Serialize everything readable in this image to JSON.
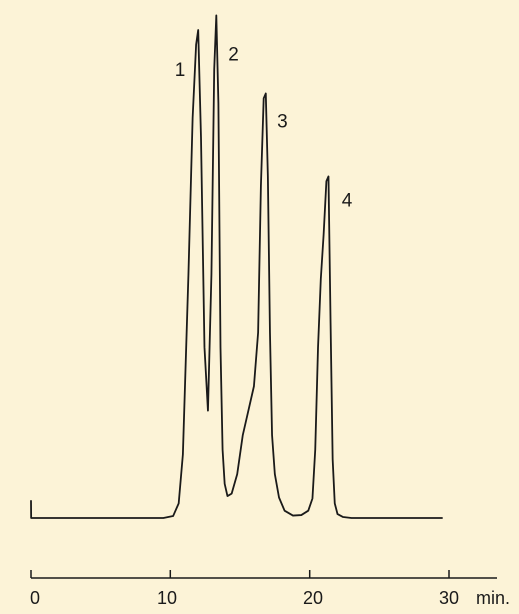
{
  "chart_data": {
    "type": "line",
    "title": "",
    "xlabel": "",
    "ylabel": "",
    "x_unit_label": "min.",
    "xlim": [
      0,
      30
    ],
    "ylim": [
      0,
      100
    ],
    "grid": false,
    "legend": "none",
    "x_ticks": [
      0,
      10,
      20,
      30
    ],
    "series": [
      {
        "x": [
          0,
          0.01,
          9.5,
          10.2,
          10.6,
          10.9,
          11.3,
          11.6,
          11.85,
          12.0,
          12.2,
          12.45,
          12.7,
          12.95,
          13.15,
          13.3,
          13.45,
          13.6,
          13.75,
          13.9,
          14.1,
          14.4,
          14.8,
          15.2,
          15.6,
          16.0,
          16.3,
          16.5,
          16.7,
          16.85,
          17.0,
          17.15,
          17.3,
          17.5,
          17.8,
          18.2,
          18.8,
          19.4,
          19.9,
          20.2,
          20.4,
          20.6,
          20.8,
          21.0,
          21.2,
          21.35,
          21.5,
          21.65,
          21.8,
          22.0,
          22.4,
          23.0,
          24.0,
          26.0,
          28.0,
          29.5
        ],
        "y": [
          3.5,
          0,
          0,
          0.4,
          3,
          13,
          50,
          82,
          97,
          100,
          78,
          35,
          22,
          50,
          92,
          103,
          85,
          35,
          14,
          7,
          4.5,
          5,
          9,
          17,
          22,
          27,
          38,
          68,
          86,
          87,
          70,
          38,
          17,
          9,
          4.2,
          1.5,
          0.5,
          0.6,
          1.5,
          4,
          14,
          35,
          49,
          58,
          69,
          70,
          40,
          12,
          3,
          0.8,
          0.2,
          0,
          0,
          0,
          0,
          0
        ]
      }
    ],
    "peak_labels": [
      {
        "text": "1",
        "x": 11.9,
        "y": 100
      },
      {
        "text": "2",
        "x": 13.3,
        "y": 103
      },
      {
        "text": "3",
        "x": 16.8,
        "y": 87
      },
      {
        "text": "4",
        "x": 21.3,
        "y": 70
      }
    ]
  },
  "colors": {
    "background": "#fcf3d7",
    "line": "#1a1a1a"
  }
}
